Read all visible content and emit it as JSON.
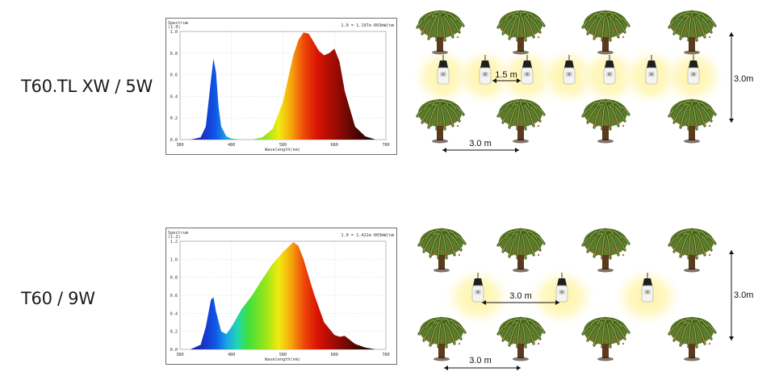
{
  "rows": [
    {
      "label": "T60.TL XW / 5W",
      "spectrum": {
        "corner_title": "Spectrum",
        "corner_sub": "(1.0)",
        "header": "1.0 = 1.197e-003mW/nm",
        "xlabel": "Wavelength(nm)",
        "x_ticks": [
          "380",
          "480",
          "580",
          "680",
          "780"
        ],
        "y_ticks": [
          "1.0",
          "0.8",
          "0.6",
          "0.4",
          "0.2",
          "0.0"
        ]
      },
      "scene": {
        "lamp_spacing": "1.5 m",
        "tree_spacing": "3.0 m",
        "row_spacing": "3.0m"
      }
    },
    {
      "label": "T60 / 9W",
      "spectrum": {
        "corner_title": "Spectrum",
        "corner_sub": "(1.2)",
        "header": "1.0 = 1.422e-003mW/nm",
        "xlabel": "Wavelength(nm)",
        "x_ticks": [
          "380",
          "480",
          "580",
          "680",
          "780"
        ],
        "y_ticks": [
          "1.2",
          "1.0",
          "0.8",
          "0.6",
          "0.4",
          "0.2",
          "0.0"
        ]
      },
      "scene": {
        "lamp_spacing": "3.0 m",
        "tree_spacing": "3.0 m",
        "row_spacing": "3.0m"
      }
    }
  ],
  "chart_data": [
    {
      "type": "area",
      "header": "1.0 = 1.197e-003mW/nm",
      "xlabel": "Wavelength(nm)",
      "xlim": [
        380,
        780
      ],
      "ylim": [
        0,
        1.0
      ],
      "x": [
        380,
        400,
        420,
        430,
        440,
        445,
        450,
        455,
        460,
        470,
        480,
        500,
        520,
        540,
        560,
        580,
        600,
        610,
        620,
        630,
        640,
        650,
        660,
        670,
        680,
        690,
        700,
        720,
        740,
        760,
        780
      ],
      "y": [
        0.0,
        0.0,
        0.02,
        0.12,
        0.55,
        0.75,
        0.62,
        0.3,
        0.12,
        0.03,
        0.01,
        0.0,
        0.0,
        0.02,
        0.1,
        0.35,
        0.78,
        0.92,
        0.99,
        0.98,
        0.9,
        0.82,
        0.78,
        0.8,
        0.84,
        0.72,
        0.45,
        0.12,
        0.03,
        0.0,
        0.0
      ]
    },
    {
      "type": "area",
      "header": "1.0 = 1.422e-003mW/nm",
      "xlabel": "Wavelength(nm)",
      "xlim": [
        380,
        780
      ],
      "ylim": [
        0,
        1.2
      ],
      "x": [
        380,
        400,
        420,
        430,
        440,
        445,
        450,
        460,
        470,
        480,
        500,
        520,
        540,
        560,
        580,
        600,
        610,
        620,
        640,
        660,
        680,
        690,
        700,
        720,
        740,
        760,
        780
      ],
      "y": [
        0.0,
        0.0,
        0.05,
        0.25,
        0.55,
        0.58,
        0.42,
        0.2,
        0.17,
        0.25,
        0.45,
        0.6,
        0.78,
        0.95,
        1.08,
        1.19,
        1.15,
        1.0,
        0.62,
        0.3,
        0.16,
        0.14,
        0.15,
        0.06,
        0.02,
        0.0,
        0.0
      ]
    }
  ]
}
